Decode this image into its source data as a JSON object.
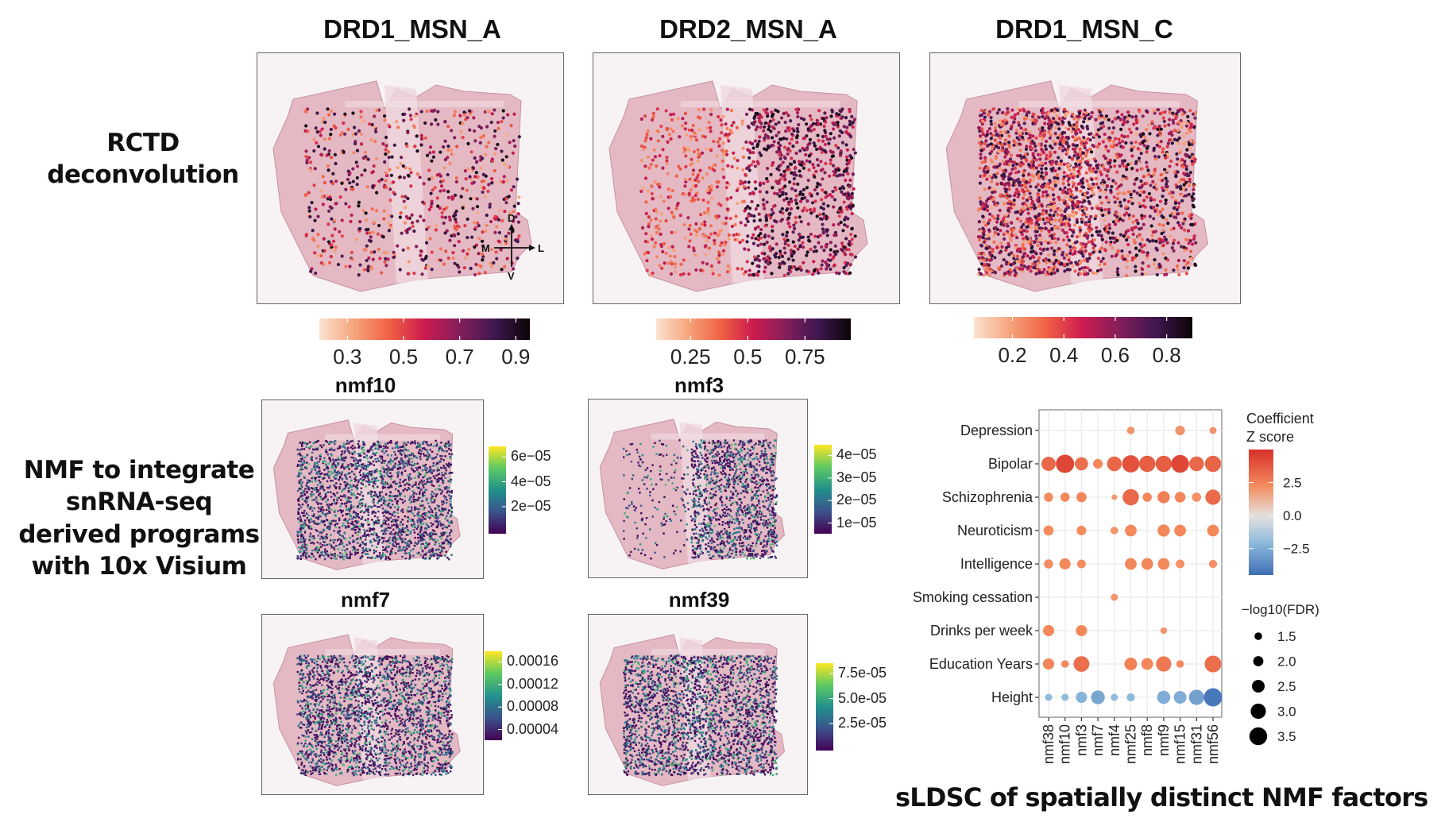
{
  "row_labels": {
    "rctd_line1": "RCTD",
    "rctd_line2": "deconvolution",
    "nmf_line1": "NMF to integrate",
    "nmf_line2": "snRNA-seq",
    "nmf_line3": "derived programs",
    "nmf_line4": "with 10x Visium"
  },
  "rctd_panels": [
    {
      "title": "DRD1_MSN_A",
      "colorbar": {
        "palette": "rocket",
        "ticks": [
          "0.3",
          "0.5",
          "0.7",
          "0.9"
        ],
        "range": [
          0.2,
          0.95
        ]
      },
      "density": "sparse",
      "orientation": {
        "d": "D",
        "v": "V",
        "m": "M",
        "l": "L"
      }
    },
    {
      "title": "DRD2_MSN_A",
      "colorbar": {
        "palette": "rocket",
        "ticks": [
          "0.25",
          "0.5",
          "0.75"
        ],
        "range": [
          0.1,
          0.95
        ]
      },
      "density": "medium"
    },
    {
      "title": "DRD1_MSN_C",
      "colorbar": {
        "palette": "rocket",
        "ticks": [
          "0.2",
          "0.4",
          "0.6",
          "0.8"
        ],
        "range": [
          0.05,
          0.9
        ]
      },
      "density": "dense"
    }
  ],
  "nmf_panels": [
    {
      "title": "nmf10",
      "colorbar": {
        "palette": "viridis",
        "ticks": [
          "6e−05",
          "4e−05",
          "2e−05"
        ]
      }
    },
    {
      "title": "nmf3",
      "colorbar": {
        "palette": "viridis",
        "ticks": [
          "4e−05",
          "3e−05",
          "2e−05",
          "1e−05"
        ]
      }
    },
    {
      "title": "nmf7",
      "colorbar": {
        "palette": "viridis",
        "ticks": [
          "0.00016",
          "0.00012",
          "0.00008",
          "0.00004"
        ]
      }
    },
    {
      "title": "nmf39",
      "colorbar": {
        "palette": "viridis",
        "ticks": [
          "7.5e-05",
          "5.0e-05",
          "2.5e-05"
        ]
      }
    }
  ],
  "caption": "sLDSC of spatially distinct NMF factors",
  "chart_data": {
    "type": "scatter",
    "subtype": "dot-plot",
    "title": "sLDSC of spatially distinct NMF factors",
    "xlabel": "",
    "ylabel": "",
    "x": [
      "nmf38",
      "nmf10",
      "nmf3",
      "nmf7",
      "nmf4",
      "nmf25",
      "nmf8",
      "nmf9",
      "nmf15",
      "nmf31",
      "nmf56"
    ],
    "y": [
      "Depression",
      "Bipolar",
      "Schizophrenia",
      "Neuroticism",
      "Intelligence",
      "Smoking cessation",
      "Drinks per week",
      "Education Years",
      "Height"
    ],
    "grid": true,
    "color_legend": {
      "title_line1": "Coefficient",
      "title_line2": "Z score",
      "ticks": [
        "2.5",
        "0.0",
        "−2.5"
      ],
      "tick_values": [
        2.5,
        0.0,
        -2.5
      ],
      "range": [
        -4.5,
        5
      ],
      "low": "#3f6fb5",
      "mid": "#e6e1df",
      "high": "#d7302a"
    },
    "size_legend": {
      "title": "−log10(FDR)",
      "values": [
        1.5,
        2.0,
        2.5,
        3.0,
        3.5
      ],
      "labels": [
        "1.5",
        "2.0",
        "2.5",
        "3.0",
        "3.5"
      ]
    },
    "points": [
      {
        "trait": "Depression",
        "factor": "nmf25",
        "z": 2.0,
        "fdr": 1.5
      },
      {
        "trait": "Depression",
        "factor": "nmf15",
        "z": 2.0,
        "fdr": 1.9
      },
      {
        "trait": "Depression",
        "factor": "nmf56",
        "z": 2.0,
        "fdr": 1.4
      },
      {
        "trait": "Bipolar",
        "factor": "nmf38",
        "z": 3.3,
        "fdr": 2.8
      },
      {
        "trait": "Bipolar",
        "factor": "nmf10",
        "z": 4.3,
        "fdr": 3.6
      },
      {
        "trait": "Bipolar",
        "factor": "nmf3",
        "z": 3.1,
        "fdr": 2.6
      },
      {
        "trait": "Bipolar",
        "factor": "nmf7",
        "z": 2.3,
        "fdr": 1.9
      },
      {
        "trait": "Bipolar",
        "factor": "nmf4",
        "z": 3.3,
        "fdr": 2.9
      },
      {
        "trait": "Bipolar",
        "factor": "nmf25",
        "z": 4.0,
        "fdr": 3.4
      },
      {
        "trait": "Bipolar",
        "factor": "nmf8",
        "z": 3.6,
        "fdr": 3.2
      },
      {
        "trait": "Bipolar",
        "factor": "nmf9",
        "z": 3.6,
        "fdr": 3.2
      },
      {
        "trait": "Bipolar",
        "factor": "nmf15",
        "z": 4.3,
        "fdr": 3.5
      },
      {
        "trait": "Bipolar",
        "factor": "nmf31",
        "z": 3.3,
        "fdr": 2.9
      },
      {
        "trait": "Bipolar",
        "factor": "nmf56",
        "z": 3.4,
        "fdr": 3.2
      },
      {
        "trait": "Schizophrenia",
        "factor": "nmf38",
        "z": 2.2,
        "fdr": 1.8
      },
      {
        "trait": "Schizophrenia",
        "factor": "nmf10",
        "z": 2.3,
        "fdr": 1.8
      },
      {
        "trait": "Schizophrenia",
        "factor": "nmf3",
        "z": 2.4,
        "fdr": 2.0
      },
      {
        "trait": "Schizophrenia",
        "factor": "nmf4",
        "z": 1.9,
        "fdr": 1.1
      },
      {
        "trait": "Schizophrenia",
        "factor": "nmf25",
        "z": 3.3,
        "fdr": 3.2
      },
      {
        "trait": "Schizophrenia",
        "factor": "nmf8",
        "z": 2.3,
        "fdr": 1.8
      },
      {
        "trait": "Schizophrenia",
        "factor": "nmf9",
        "z": 2.6,
        "fdr": 2.4
      },
      {
        "trait": "Schizophrenia",
        "factor": "nmf15",
        "z": 2.4,
        "fdr": 2.1
      },
      {
        "trait": "Schizophrenia",
        "factor": "nmf31",
        "z": 2.1,
        "fdr": 1.8
      },
      {
        "trait": "Schizophrenia",
        "factor": "nmf56",
        "z": 3.2,
        "fdr": 3.0
      },
      {
        "trait": "Neuroticism",
        "factor": "nmf38",
        "z": 2.2,
        "fdr": 2.0
      },
      {
        "trait": "Neuroticism",
        "factor": "nmf3",
        "z": 2.2,
        "fdr": 1.9
      },
      {
        "trait": "Neuroticism",
        "factor": "nmf4",
        "z": 2.0,
        "fdr": 1.5
      },
      {
        "trait": "Neuroticism",
        "factor": "nmf25",
        "z": 2.3,
        "fdr": 2.3
      },
      {
        "trait": "Neuroticism",
        "factor": "nmf9",
        "z": 2.3,
        "fdr": 2.4
      },
      {
        "trait": "Neuroticism",
        "factor": "nmf15",
        "z": 2.3,
        "fdr": 2.3
      },
      {
        "trait": "Neuroticism",
        "factor": "nmf56",
        "z": 2.3,
        "fdr": 2.3
      },
      {
        "trait": "Intelligence",
        "factor": "nmf38",
        "z": 2.2,
        "fdr": 1.8
      },
      {
        "trait": "Intelligence",
        "factor": "nmf10",
        "z": 2.3,
        "fdr": 2.2
      },
      {
        "trait": "Intelligence",
        "factor": "nmf3",
        "z": 2.2,
        "fdr": 1.7
      },
      {
        "trait": "Intelligence",
        "factor": "nmf25",
        "z": 2.3,
        "fdr": 2.3
      },
      {
        "trait": "Intelligence",
        "factor": "nmf8",
        "z": 2.3,
        "fdr": 2.3
      },
      {
        "trait": "Intelligence",
        "factor": "nmf9",
        "z": 2.3,
        "fdr": 2.3
      },
      {
        "trait": "Intelligence",
        "factor": "nmf15",
        "z": 2.1,
        "fdr": 1.7
      },
      {
        "trait": "Intelligence",
        "factor": "nmf56",
        "z": 2.1,
        "fdr": 1.6
      },
      {
        "trait": "Smoking cessation",
        "factor": "nmf4",
        "z": 2.0,
        "fdr": 1.4
      },
      {
        "trait": "Drinks per week",
        "factor": "nmf38",
        "z": 2.3,
        "fdr": 2.2
      },
      {
        "trait": "Drinks per week",
        "factor": "nmf3",
        "z": 2.3,
        "fdr": 2.2
      },
      {
        "trait": "Drinks per week",
        "factor": "nmf9",
        "z": 2.0,
        "fdr": 1.3
      },
      {
        "trait": "Education Years",
        "factor": "nmf38",
        "z": 2.4,
        "fdr": 2.2
      },
      {
        "trait": "Education Years",
        "factor": "nmf10",
        "z": 2.2,
        "fdr": 1.5
      },
      {
        "trait": "Education Years",
        "factor": "nmf3",
        "z": 3.1,
        "fdr": 3.1
      },
      {
        "trait": "Education Years",
        "factor": "nmf25",
        "z": 2.5,
        "fdr": 2.5
      },
      {
        "trait": "Education Years",
        "factor": "nmf8",
        "z": 2.4,
        "fdr": 2.3
      },
      {
        "trait": "Education Years",
        "factor": "nmf9",
        "z": 2.8,
        "fdr": 3.0
      },
      {
        "trait": "Education Years",
        "factor": "nmf15",
        "z": 2.2,
        "fdr": 1.5
      },
      {
        "trait": "Education Years",
        "factor": "nmf56",
        "z": 3.1,
        "fdr": 3.3
      },
      {
        "trait": "Height",
        "factor": "nmf38",
        "z": -2.0,
        "fdr": 1.4
      },
      {
        "trait": "Height",
        "factor": "nmf10",
        "z": -2.0,
        "fdr": 1.4
      },
      {
        "trait": "Height",
        "factor": "nmf3",
        "z": -2.3,
        "fdr": 2.2
      },
      {
        "trait": "Height",
        "factor": "nmf7",
        "z": -2.7,
        "fdr": 2.7
      },
      {
        "trait": "Height",
        "factor": "nmf4",
        "z": -2.0,
        "fdr": 1.4
      },
      {
        "trait": "Height",
        "factor": "nmf25",
        "z": -2.1,
        "fdr": 1.6
      },
      {
        "trait": "Height",
        "factor": "nmf9",
        "z": -2.5,
        "fdr": 2.6
      },
      {
        "trait": "Height",
        "factor": "nmf15",
        "z": -2.5,
        "fdr": 2.5
      },
      {
        "trait": "Height",
        "factor": "nmf31",
        "z": -2.9,
        "fdr": 3.0
      },
      {
        "trait": "Height",
        "factor": "nmf56",
        "z": -4.2,
        "fdr": 3.6
      }
    ]
  }
}
